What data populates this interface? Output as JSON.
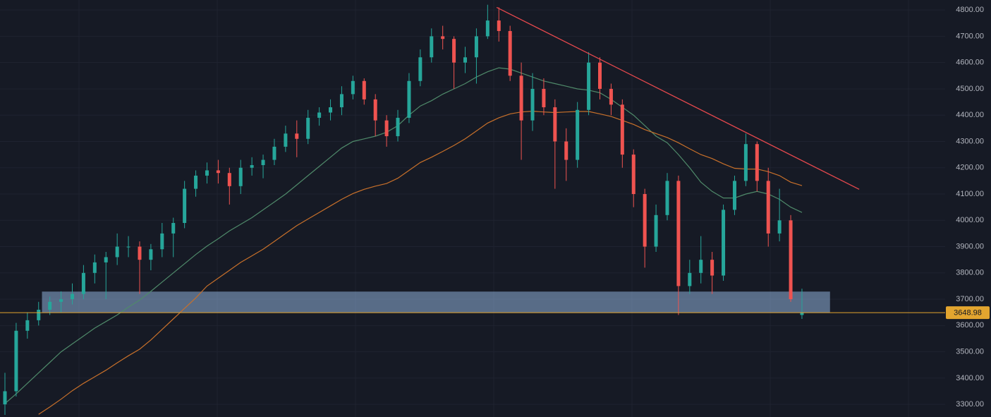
{
  "chart_data": {
    "type": "candlestick",
    "up_color": "#26a69a",
    "down_color": "#ef5350",
    "ylim": [
      3252,
      4838
    ],
    "yticks": [
      {
        "value": 3300,
        "label": "3300.00"
      },
      {
        "value": 3400,
        "label": "3400.00"
      },
      {
        "value": 3500,
        "label": "3500.00"
      },
      {
        "value": 3600,
        "label": "3600.00"
      },
      {
        "value": 3700,
        "label": "3700.00"
      },
      {
        "value": 3800,
        "label": "3800.00"
      },
      {
        "value": 3900,
        "label": "3900.00"
      },
      {
        "value": 4000,
        "label": "4000.00"
      },
      {
        "value": 4100,
        "label": "4100.00"
      },
      {
        "value": 4200,
        "label": "4200.00"
      },
      {
        "value": 4300,
        "label": "4300.00"
      },
      {
        "value": 4400,
        "label": "4400.00"
      },
      {
        "value": 4500,
        "label": "4500.00"
      },
      {
        "value": 4600,
        "label": "4600.00"
      },
      {
        "value": 4700,
        "label": "4700.00"
      },
      {
        "value": 4800,
        "label": "4800.00"
      }
    ],
    "grid": true,
    "open": [
      3300,
      3350,
      3580,
      3620,
      3660,
      3690,
      3700,
      3720,
      3800,
      3840,
      3860,
      3900,
      3900,
      3850,
      3890,
      3950,
      3990,
      4120,
      4170,
      4190,
      4180,
      4130,
      4200,
      4210,
      4230,
      4280,
      4330,
      4310,
      4390,
      4410,
      4430,
      4480,
      4530,
      4460,
      4380,
      4320,
      4390,
      4530,
      4620,
      4700,
      4690,
      4600,
      4620,
      4700,
      4760,
      4720,
      4550,
      4380,
      4500,
      4430,
      4300,
      4230,
      4420,
      4600,
      4500,
      4440,
      4250,
      4100,
      3900,
      4020,
      4150,
      3750,
      3800,
      3850,
      3790,
      4040,
      4150,
      4290,
      4150,
      3950,
      4000,
      3640
    ],
    "high": [
      3420,
      3610,
      3650,
      3690,
      3710,
      3730,
      3760,
      3830,
      3870,
      3880,
      3950,
      3940,
      3920,
      3910,
      3990,
      4010,
      4150,
      4190,
      4220,
      4230,
      4200,
      4230,
      4240,
      4250,
      4310,
      4360,
      4380,
      4420,
      4430,
      4460,
      4510,
      4550,
      4540,
      4480,
      4400,
      4420,
      4560,
      4650,
      4730,
      4740,
      4700,
      4660,
      4730,
      4820,
      4810,
      4740,
      4600,
      4560,
      4540,
      4460,
      4350,
      4450,
      4640,
      4620,
      4520,
      4460,
      4270,
      4120,
      4060,
      4180,
      4170,
      3850,
      3940,
      3880,
      4060,
      4170,
      4330,
      4300,
      4200,
      4120,
      4020,
      3740
    ],
    "low": [
      3260,
      3330,
      3550,
      3600,
      3640,
      3650,
      3680,
      3700,
      3760,
      3700,
      3830,
      3860,
      3720,
      3810,
      3860,
      3860,
      3970,
      4090,
      4140,
      4140,
      4060,
      4100,
      4170,
      4160,
      4210,
      4260,
      4240,
      4290,
      4360,
      4380,
      4400,
      4460,
      4440,
      4320,
      4280,
      4300,
      4370,
      4510,
      4600,
      4650,
      4500,
      4560,
      4520,
      4690,
      4680,
      4530,
      4230,
      4340,
      4400,
      4120,
      4150,
      4200,
      4400,
      4460,
      4400,
      4200,
      4050,
      3820,
      3880,
      4000,
      3640,
      3720,
      3760,
      3720,
      3770,
      4020,
      4130,
      4110,
      3900,
      3920,
      3690,
      3625
    ],
    "close": [
      3350,
      3580,
      3620,
      3660,
      3690,
      3700,
      3720,
      3800,
      3840,
      3860,
      3900,
      3900,
      3850,
      3890,
      3950,
      3990,
      4120,
      4170,
      4190,
      4180,
      4130,
      4200,
      4210,
      4230,
      4280,
      4330,
      4310,
      4390,
      4410,
      4430,
      4480,
      4530,
      4460,
      4380,
      4320,
      4390,
      4530,
      4620,
      4700,
      4690,
      4600,
      4620,
      4700,
      4760,
      4720,
      4550,
      4380,
      4500,
      4430,
      4300,
      4230,
      4420,
      4600,
      4500,
      4440,
      4250,
      4100,
      3900,
      4020,
      4150,
      3750,
      3800,
      3850,
      3790,
      4040,
      4150,
      4290,
      4150,
      3950,
      4000,
      3700,
      3648.98
    ],
    "series": [
      {
        "color": "#4f8a6a",
        "values": [
          3303,
          3340,
          3380,
          3420,
          3460,
          3500,
          3530,
          3560,
          3590,
          3615,
          3640,
          3670,
          3697,
          3730,
          3765,
          3800,
          3835,
          3870,
          3902,
          3930,
          3960,
          3985,
          4010,
          4040,
          4070,
          4100,
          4135,
          4170,
          4205,
          4240,
          4275,
          4300,
          4310,
          4320,
          4335,
          4360,
          4400,
          4435,
          4455,
          4480,
          4500,
          4520,
          4545,
          4565,
          4580,
          4575,
          4560,
          4545,
          4530,
          4520,
          4510,
          4500,
          4495,
          4485,
          4460,
          4430,
          4400,
          4360,
          4320,
          4295,
          4250,
          4200,
          4145,
          4110,
          4085,
          4085,
          4100,
          4110,
          4100,
          4080,
          4050,
          4030
        ]
      },
      {
        "color": "#c8702a",
        "values": [
          null,
          null,
          null,
          3262,
          3290,
          3320,
          3352,
          3380,
          3405,
          3430,
          3458,
          3485,
          3510,
          3545,
          3585,
          3625,
          3665,
          3705,
          3750,
          3780,
          3810,
          3840,
          3865,
          3890,
          3920,
          3950,
          3980,
          4005,
          4030,
          4055,
          4080,
          4102,
          4118,
          4130,
          4140,
          4160,
          4190,
          4220,
          4240,
          4262,
          4285,
          4310,
          4340,
          4370,
          4390,
          4405,
          4412,
          4415,
          4412,
          4410,
          4412,
          4414,
          4414,
          4405,
          4395,
          4380,
          4365,
          4345,
          4330,
          4315,
          4295,
          4272,
          4250,
          4235,
          4215,
          4198,
          4195,
          4195,
          4185,
          4170,
          4145,
          4132
        ]
      }
    ],
    "trendline": {
      "color": "#e5484d",
      "x": [
        43.8,
        76.1
      ],
      "y": [
        4810,
        4118
      ]
    },
    "support_zone": {
      "color": "#8fb0d8",
      "x": [
        3.3,
        73.5
      ],
      "y": [
        3649,
        3729
      ]
    },
    "price_line_color": "#e3a52f"
  }
}
